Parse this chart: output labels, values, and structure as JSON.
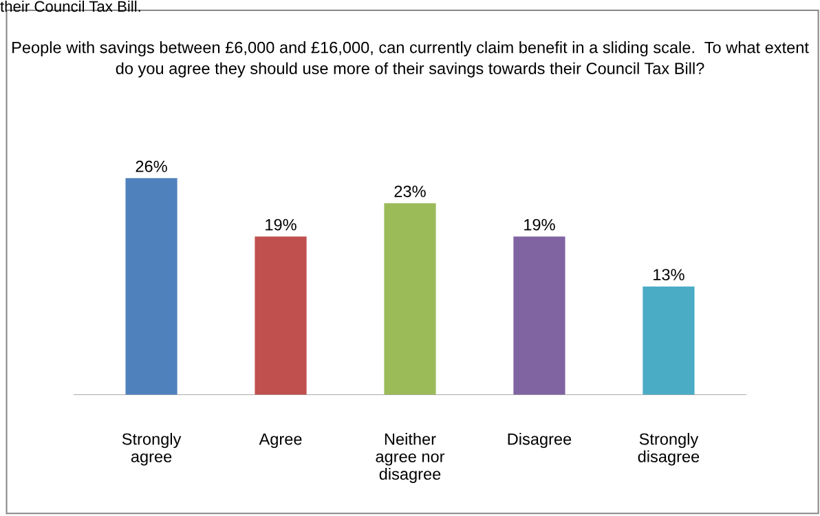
{
  "chart_data": {
    "type": "bar",
    "title": "People with savings between £6,000 and £16,000, can currently claim benefit in a sliding scale.  To what extent do you agree they should use more of their savings towards their Council Tax Bill?",
    "annotations": [
      "their Council Tax Bill."
    ],
    "categories": [
      "Strongly\nagree",
      "Agree",
      "Neither\nagree nor\ndisagree",
      "Disagree",
      "Strongly\ndisagree"
    ],
    "values": [
      26,
      19,
      23,
      19,
      13
    ],
    "colors": [
      "#4f81bd",
      "#c0504d",
      "#9bbb59",
      "#8064a2",
      "#4bacc6"
    ],
    "value_labels": [
      "26%",
      "19%",
      "23%",
      "19%",
      "13%"
    ],
    "grid": false,
    "legend": false
  }
}
